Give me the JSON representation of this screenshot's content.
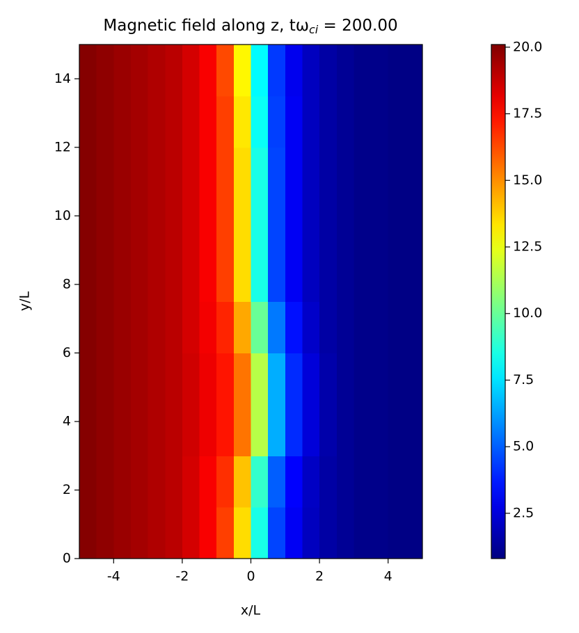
{
  "chart_data": {
    "type": "heatmap",
    "title": [
      "Magnetic field along z, tω",
      "ci",
      " = 200.00"
    ],
    "xlabel": "x/L",
    "ylabel": "y/L",
    "colormap": "jet",
    "x": [
      -4.75,
      -4.25,
      -3.75,
      -3.25,
      -2.75,
      -2.25,
      -1.75,
      -1.25,
      -0.75,
      -0.25,
      0.25,
      0.75,
      1.25,
      1.75,
      2.25,
      2.75,
      3.25,
      3.75,
      4.25,
      4.75
    ],
    "y": [
      0.75,
      2.25,
      3.75,
      5.25,
      6.75,
      8.25,
      9.75,
      11.25,
      12.75,
      14.25
    ],
    "z": [
      [
        20.0,
        19.8,
        19.6,
        19.4,
        19.2,
        19.0,
        18.5,
        17.8,
        16.5,
        13.5,
        8.5,
        4.5,
        3.0,
        2.0,
        1.5,
        1.2,
        1.0,
        1.0,
        0.9,
        0.9
      ],
      [
        20.0,
        19.8,
        19.6,
        19.4,
        19.2,
        19.0,
        18.5,
        17.8,
        16.8,
        14.0,
        9.0,
        5.0,
        3.2,
        2.1,
        1.5,
        1.2,
        1.0,
        1.0,
        0.9,
        0.9
      ],
      [
        20.0,
        19.8,
        19.6,
        19.4,
        19.2,
        19.0,
        18.6,
        18.0,
        17.3,
        15.5,
        11.5,
        6.5,
        4.0,
        2.5,
        1.6,
        1.2,
        1.0,
        1.0,
        0.9,
        0.9
      ],
      [
        20.0,
        19.8,
        19.6,
        19.4,
        19.2,
        19.0,
        18.6,
        18.0,
        17.3,
        15.5,
        11.5,
        6.5,
        4.0,
        2.5,
        1.6,
        1.2,
        1.0,
        1.0,
        0.9,
        0.9
      ],
      [
        20.0,
        19.8,
        19.6,
        19.4,
        19.2,
        19.0,
        18.5,
        17.9,
        17.0,
        14.5,
        10.0,
        5.5,
        3.5,
        2.2,
        1.5,
        1.2,
        1.0,
        1.0,
        0.9,
        0.9
      ],
      [
        20.0,
        19.8,
        19.6,
        19.4,
        19.2,
        19.0,
        18.5,
        17.8,
        16.5,
        13.5,
        8.5,
        4.5,
        3.0,
        2.0,
        1.5,
        1.2,
        1.0,
        1.0,
        0.9,
        0.9
      ],
      [
        20.0,
        19.8,
        19.6,
        19.4,
        19.2,
        19.0,
        18.5,
        17.8,
        16.5,
        13.5,
        8.5,
        4.5,
        3.0,
        2.0,
        1.5,
        1.2,
        1.0,
        1.0,
        0.9,
        0.9
      ],
      [
        20.0,
        19.8,
        19.6,
        19.4,
        19.2,
        19.0,
        18.5,
        17.8,
        16.5,
        13.5,
        8.5,
        4.5,
        3.0,
        2.0,
        1.5,
        1.2,
        1.0,
        1.0,
        0.9,
        0.9
      ],
      [
        20.0,
        19.8,
        19.6,
        19.4,
        19.2,
        19.0,
        18.5,
        17.8,
        16.5,
        13.3,
        8.2,
        4.4,
        3.0,
        2.0,
        1.5,
        1.2,
        1.0,
        1.0,
        0.9,
        0.9
      ],
      [
        20.0,
        19.8,
        19.6,
        19.4,
        19.2,
        19.0,
        18.5,
        17.8,
        16.3,
        13.0,
        8.0,
        4.3,
        2.9,
        2.0,
        1.5,
        1.2,
        1.0,
        1.0,
        0.9,
        0.9
      ]
    ],
    "xlim": [
      -5,
      5
    ],
    "xticks": [
      -4,
      -2,
      0,
      2,
      4
    ],
    "ylim": [
      0,
      15
    ],
    "yticks": [
      0,
      2,
      4,
      6,
      8,
      10,
      12,
      14
    ],
    "clim": [
      0.8,
      20.1
    ],
    "cticks": [
      2.5,
      {
        "value": 5,
        "label": "5.0"
      },
      7.5,
      {
        "value": 10,
        "label": "10.0"
      },
      12.5,
      {
        "value": 15,
        "label": "15.0"
      },
      17.5,
      {
        "value": 20,
        "label": "20.0"
      }
    ]
  }
}
